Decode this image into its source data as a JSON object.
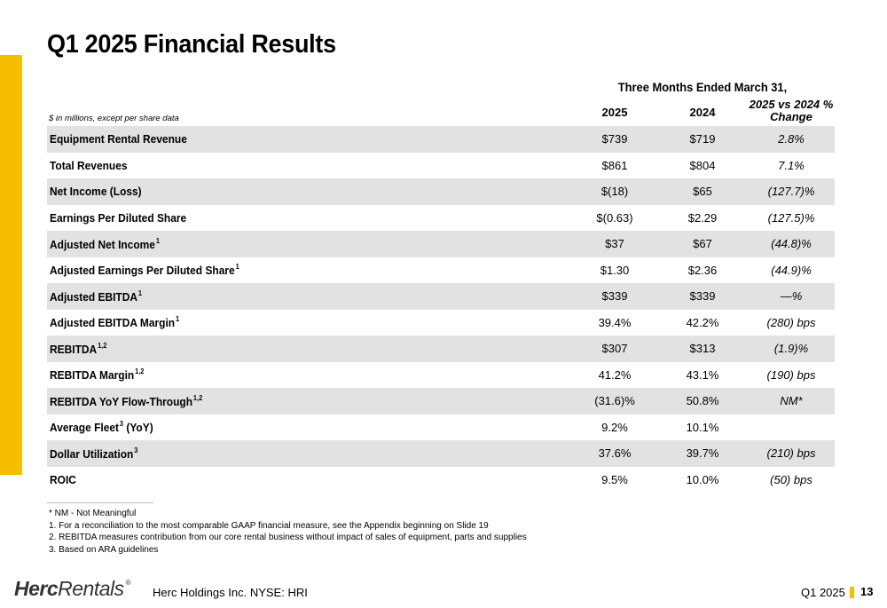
{
  "slide": {
    "title": "Q1 2025 Financial Results",
    "page_number": "13",
    "accent_color": "#F5BE00"
  },
  "table": {
    "period_header": "Three Months Ended March 31,",
    "units_note": "$ in millions, except per share data",
    "columns": {
      "c2025": "2025",
      "c2024": "2024",
      "change_line1": "2025 vs 2024 %",
      "change_line2": "Change"
    },
    "rows": [
      {
        "label": "Equipment Rental Revenue",
        "sup": "",
        "v2025": "$739",
        "v2024": "$719",
        "change": "2.8%"
      },
      {
        "label": "Total Revenues",
        "sup": "",
        "v2025": "$861",
        "v2024": "$804",
        "change": "7.1%"
      },
      {
        "label": "Net Income (Loss)",
        "sup": "",
        "v2025": "$(18)",
        "v2024": "$65",
        "change": "(127.7)%"
      },
      {
        "label": "Earnings Per Diluted Share",
        "sup": "",
        "v2025": "$(0.63)",
        "v2024": "$2.29",
        "change": "(127.5)%"
      },
      {
        "label": "Adjusted Net Income",
        "sup": "1",
        "v2025": "$37",
        "v2024": "$67",
        "change": "(44.8)%"
      },
      {
        "label": "Adjusted Earnings Per Diluted Share",
        "sup": "1",
        "v2025": "$1.30",
        "v2024": "$2.36",
        "change": "(44.9)%"
      },
      {
        "label": "Adjusted EBITDA",
        "sup": "1",
        "v2025": "$339",
        "v2024": "$339",
        "change": "—%"
      },
      {
        "label": "Adjusted EBITDA Margin",
        "sup": "1",
        "v2025": "39.4%",
        "v2024": "42.2%",
        "change": "(280) bps"
      },
      {
        "label": "REBITDA",
        "sup": "1,2",
        "v2025": "$307",
        "v2024": "$313",
        "change": "(1.9)%"
      },
      {
        "label": "REBITDA Margin",
        "sup": "1,2",
        "v2025": "41.2%",
        "v2024": "43.1%",
        "change": "(190) bps"
      },
      {
        "label": "REBITDA YoY Flow-Through",
        "sup": "1,2",
        "v2025": "(31.6)%",
        "v2024": "50.8%",
        "change": "NM*"
      },
      {
        "label": "Average Fleet",
        "sup": "3",
        "suffix": " (YoY)",
        "v2025": "9.2%",
        "v2024": "10.1%",
        "change": ""
      },
      {
        "label": "Dollar Utilization",
        "sup": "3",
        "v2025": "37.6%",
        "v2024": "39.7%",
        "change": "(210) bps"
      },
      {
        "label": "ROIC",
        "sup": "",
        "v2025": "9.5%",
        "v2024": "10.0%",
        "change": "(50) bps"
      }
    ]
  },
  "footnotes": [
    "* NM - Not Meaningful",
    "1. For a reconciliation to the most comparable GAAP financial measure, see the Appendix beginning on Slide 19",
    "2. REBITDA measures contribution from our core rental business without impact of sales of equipment, parts and supplies",
    "3. Based on ARA guidelines"
  ],
  "footer": {
    "logo_part1": "Herc",
    "logo_part2": "Rentals",
    "logo_reg": "®",
    "company": "Herc Holdings Inc.  NYSE: HRI",
    "quarter": "Q1 2025"
  }
}
